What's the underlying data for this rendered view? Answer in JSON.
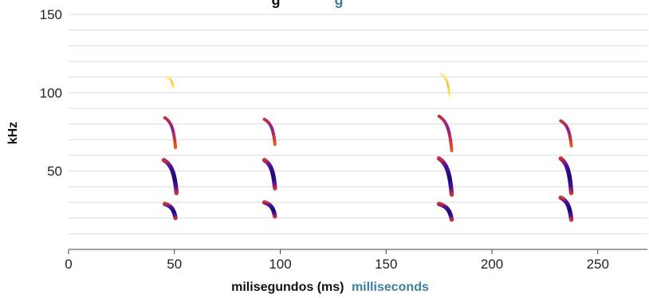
{
  "chart_data": {
    "type": "heatmap",
    "title": "",
    "title_fragment": "g",
    "title_fragment_tail": "g",
    "xlabel": "milisegundos (ms)",
    "xlabel_translation": "milliseconds",
    "ylabel": "kHz",
    "xlim": [
      0,
      275
    ],
    "ylim": [
      0,
      150
    ],
    "x_ticks": [
      0,
      50,
      100,
      150,
      200,
      250
    ],
    "y_ticks": [
      50,
      100,
      150
    ],
    "grid": "horizontal",
    "grid_step": 10,
    "colors": {
      "translation": "#3d7f9f",
      "gridline": "#dcdcdc",
      "colormap": [
        "#1a0a6e",
        "#4b0fa0",
        "#8a1e9a",
        "#c5343c",
        "#e8611a",
        "#f7b72a",
        "#fbf06a"
      ]
    },
    "calls": [
      {
        "time_ms": 48,
        "harmonics": [
          {
            "f_start_khz": 110,
            "f_end_khz": 103,
            "duration_ms": 3,
            "intensity": "low"
          },
          {
            "f_start_khz": 84,
            "f_end_khz": 65,
            "duration_ms": 5,
            "intensity": "medium"
          },
          {
            "f_start_khz": 57,
            "f_end_khz": 36,
            "duration_ms": 6,
            "intensity": "high"
          },
          {
            "f_start_khz": 29,
            "f_end_khz": 20,
            "duration_ms": 5,
            "intensity": "high"
          }
        ]
      },
      {
        "time_ms": 95,
        "harmonics": [
          {
            "f_start_khz": 83,
            "f_end_khz": 67,
            "duration_ms": 5,
            "intensity": "medium"
          },
          {
            "f_start_khz": 57,
            "f_end_khz": 39,
            "duration_ms": 5,
            "intensity": "high"
          },
          {
            "f_start_khz": 30,
            "f_end_khz": 21,
            "duration_ms": 5,
            "intensity": "high"
          }
        ]
      },
      {
        "time_ms": 178,
        "harmonics": [
          {
            "f_start_khz": 112,
            "f_end_khz": 98,
            "duration_ms": 4,
            "intensity": "low"
          },
          {
            "f_start_khz": 85,
            "f_end_khz": 63,
            "duration_ms": 6,
            "intensity": "medium"
          },
          {
            "f_start_khz": 58,
            "f_end_khz": 35,
            "duration_ms": 6,
            "intensity": "high"
          },
          {
            "f_start_khz": 29,
            "f_end_khz": 19,
            "duration_ms": 6,
            "intensity": "high"
          }
        ]
      },
      {
        "time_ms": 235,
        "harmonics": [
          {
            "f_start_khz": 82,
            "f_end_khz": 66,
            "duration_ms": 5,
            "intensity": "medium"
          },
          {
            "f_start_khz": 58,
            "f_end_khz": 36,
            "duration_ms": 5,
            "intensity": "high"
          },
          {
            "f_start_khz": 33,
            "f_end_khz": 19,
            "duration_ms": 5,
            "intensity": "high"
          }
        ]
      }
    ]
  }
}
